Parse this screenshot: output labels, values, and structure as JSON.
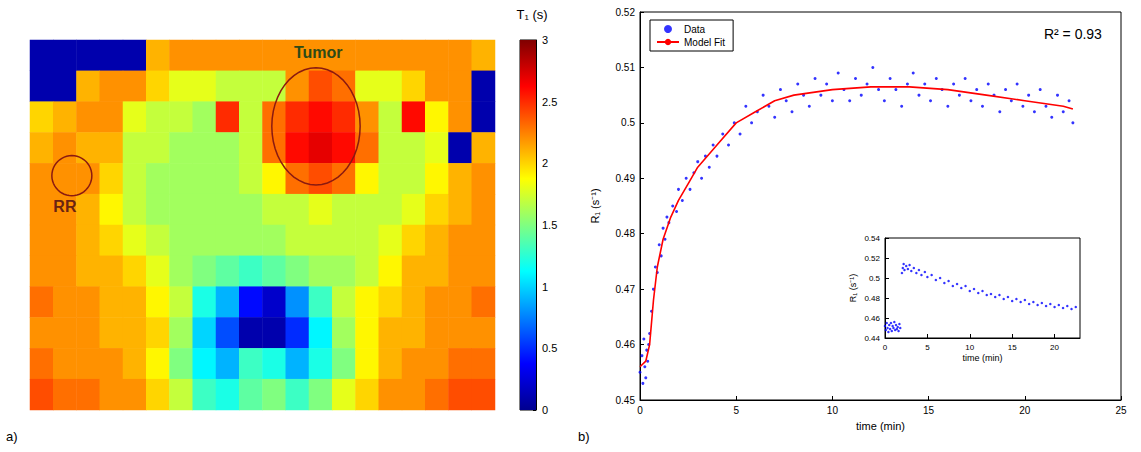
{
  "chart_data": [
    {
      "type": "heatmap",
      "panel": "a)",
      "tick_labels": false,
      "cells": [
        [
          0.1,
          0.1,
          0.1,
          0.1,
          0.1,
          2.1,
          2.2,
          2.2,
          2.2,
          2.2,
          2.2,
          2.2,
          2.2,
          2.2,
          2.2,
          2.2,
          2.2,
          2.2,
          2.2,
          2.1
        ],
        [
          0.1,
          0.1,
          2.1,
          2.2,
          2.2,
          2.0,
          1.8,
          1.8,
          1.7,
          1.7,
          1.7,
          2.2,
          2.4,
          2.3,
          1.8,
          1.8,
          2.0,
          2.2,
          2.2,
          0.1
        ],
        [
          2.0,
          2.1,
          2.2,
          2.2,
          1.8,
          1.7,
          1.7,
          1.6,
          2.5,
          1.7,
          2.3,
          2.5,
          2.6,
          2.5,
          2.2,
          1.7,
          2.6,
          1.9,
          2.2,
          0.1
        ],
        [
          2.1,
          2.2,
          2.1,
          2.1,
          1.7,
          1.7,
          1.6,
          1.6,
          1.6,
          1.7,
          2.3,
          2.6,
          2.7,
          2.6,
          2.3,
          1.7,
          1.7,
          1.8,
          0.1,
          2.1
        ],
        [
          2.2,
          2.2,
          2.2,
          2.0,
          1.7,
          1.6,
          1.6,
          1.6,
          1.6,
          1.7,
          1.9,
          2.3,
          2.4,
          2.3,
          1.9,
          1.7,
          1.7,
          1.9,
          2.1,
          2.2
        ],
        [
          2.2,
          2.2,
          2.1,
          1.9,
          1.7,
          1.6,
          1.6,
          1.6,
          1.6,
          1.6,
          1.7,
          1.7,
          1.8,
          1.7,
          1.7,
          1.7,
          1.8,
          2.0,
          2.1,
          2.2
        ],
        [
          2.2,
          2.2,
          2.1,
          2.0,
          1.8,
          1.7,
          1.6,
          1.6,
          1.6,
          1.6,
          1.6,
          1.7,
          1.7,
          1.7,
          1.7,
          1.8,
          2.0,
          2.1,
          2.2,
          2.2
        ],
        [
          2.2,
          2.2,
          2.1,
          2.1,
          2.0,
          1.8,
          1.6,
          1.5,
          1.4,
          1.3,
          1.4,
          1.5,
          1.6,
          1.6,
          1.7,
          1.9,
          2.1,
          2.1,
          2.2,
          2.2
        ],
        [
          2.3,
          2.2,
          2.2,
          2.1,
          2.1,
          1.9,
          1.7,
          1.2,
          0.9,
          0.4,
          0.2,
          0.8,
          1.3,
          1.7,
          1.9,
          2.0,
          2.1,
          2.2,
          2.2,
          2.3
        ],
        [
          2.2,
          2.2,
          2.2,
          2.1,
          2.1,
          2.0,
          1.6,
          1.0,
          0.6,
          0.1,
          0.1,
          0.5,
          1.1,
          1.6,
          1.9,
          2.1,
          2.1,
          2.2,
          2.2,
          2.2
        ],
        [
          2.3,
          2.2,
          2.2,
          2.2,
          2.1,
          1.9,
          1.5,
          1.1,
          0.9,
          1.3,
          1.2,
          0.9,
          1.2,
          1.5,
          1.9,
          2.1,
          2.2,
          2.2,
          2.3,
          2.3
        ],
        [
          2.4,
          2.3,
          2.3,
          2.2,
          2.2,
          2.0,
          1.7,
          1.3,
          1.2,
          1.4,
          1.5,
          1.3,
          1.5,
          1.8,
          2.0,
          2.2,
          2.2,
          2.3,
          2.4,
          2.4
        ]
      ],
      "colorbar": {
        "title": "T₁ (s)",
        "range": [
          0,
          3
        ],
        "ticks": [
          0,
          0.5,
          1,
          1.5,
          2,
          2.5,
          3
        ]
      },
      "annotations": [
        {
          "text": "Tumor",
          "x": 11.9,
          "y": -0.1,
          "roi": {
            "x": 11.8,
            "y": 2.3,
            "rx": 1.9,
            "ry": 1.9
          }
        },
        {
          "text": "RR",
          "x": 1.0,
          "y": 4.9,
          "roi": {
            "x": 1.3,
            "y": 3.9,
            "rx": 0.86,
            "ry": 0.65
          }
        }
      ]
    },
    {
      "type": "scatter",
      "panel": "b)",
      "xlabel": "time (min)",
      "ylabel": "R₁ (s⁻¹)",
      "xlim": [
        0,
        25
      ],
      "xticks": [
        0,
        5,
        10,
        15,
        20,
        25
      ],
      "ylim": [
        0.45,
        0.52
      ],
      "yticks": [
        0.45,
        0.46,
        0.47,
        0.48,
        0.49,
        0.5,
        0.51,
        0.52
      ],
      "grid": false,
      "legend": "upper left",
      "annotations": [
        {
          "text": "R² = 0.93",
          "x": 22.5,
          "y": 0.516
        }
      ],
      "series": [
        {
          "name": "Data",
          "type": "scatter",
          "marker": "circle",
          "color": "#0000ff",
          "x": [
            0,
            0.1,
            0.15,
            0.2,
            0.25,
            0.3,
            0.35,
            0.4,
            0.45,
            0.5,
            0.6,
            0.7,
            0.8,
            0.9,
            1.0,
            1.1,
            1.2,
            1.3,
            1.4,
            1.5,
            1.7,
            1.9,
            2.0,
            2.2,
            2.4,
            2.6,
            2.8,
            3.0,
            3.2,
            3.4,
            3.6,
            3.8,
            4.0,
            4.3,
            4.6,
            4.9,
            5.2,
            5.5,
            5.8,
            6.1,
            6.4,
            6.7,
            7.0,
            7.3,
            7.6,
            7.9,
            8.2,
            8.5,
            8.8,
            9.1,
            9.4,
            9.7,
            10.0,
            10.3,
            10.6,
            10.9,
            11.2,
            11.5,
            11.8,
            12.1,
            12.4,
            12.7,
            13.0,
            13.3,
            13.6,
            13.9,
            14.2,
            14.5,
            14.8,
            15.1,
            15.4,
            15.7,
            16.0,
            16.3,
            16.6,
            16.9,
            17.2,
            17.5,
            17.8,
            18.1,
            18.4,
            18.7,
            19.0,
            19.3,
            19.6,
            19.9,
            20.2,
            20.5,
            20.8,
            21.1,
            21.4,
            21.7,
            22.0,
            22.3,
            22.5
          ],
          "values": [
            0.455,
            0.458,
            0.453,
            0.461,
            0.456,
            0.454,
            0.459,
            0.457,
            0.46,
            0.462,
            0.466,
            0.47,
            0.474,
            0.473,
            0.478,
            0.476,
            0.481,
            0.479,
            0.483,
            0.482,
            0.485,
            0.484,
            0.488,
            0.486,
            0.49,
            0.488,
            0.491,
            0.493,
            0.49,
            0.494,
            0.492,
            0.496,
            0.494,
            0.498,
            0.496,
            0.5,
            0.498,
            0.503,
            0.5,
            0.502,
            0.505,
            0.503,
            0.501,
            0.506,
            0.504,
            0.502,
            0.507,
            0.505,
            0.503,
            0.508,
            0.505,
            0.507,
            0.504,
            0.509,
            0.506,
            0.504,
            0.508,
            0.505,
            0.507,
            0.51,
            0.506,
            0.504,
            0.508,
            0.506,
            0.503,
            0.507,
            0.509,
            0.505,
            0.507,
            0.504,
            0.508,
            0.506,
            0.503,
            0.507,
            0.505,
            0.508,
            0.504,
            0.506,
            0.503,
            0.507,
            0.505,
            0.502,
            0.506,
            0.504,
            0.507,
            0.503,
            0.505,
            0.502,
            0.506,
            0.503,
            0.501,
            0.505,
            0.502,
            0.504,
            0.5
          ]
        },
        {
          "name": "Model Fit",
          "type": "line",
          "line_style": "solid",
          "color": "#ff0000",
          "x": [
            0,
            0.3,
            0.5,
            0.7,
            0.9,
            1.2,
            1.6,
            2.0,
            2.5,
            3.0,
            4.0,
            5.0,
            6.0,
            7.0,
            8.0,
            9.0,
            10.0,
            12.0,
            14.0,
            16.0,
            18.0,
            20.0,
            21.0,
            22.0,
            22.5
          ],
          "values": [
            0.456,
            0.457,
            0.46,
            0.468,
            0.474,
            0.479,
            0.483,
            0.486,
            0.489,
            0.492,
            0.496,
            0.5,
            0.502,
            0.504,
            0.505,
            0.5055,
            0.506,
            0.5065,
            0.5065,
            0.506,
            0.505,
            0.504,
            0.5035,
            0.503,
            0.5025
          ]
        }
      ]
    },
    {
      "type": "scatter",
      "xlabel": "time (min)",
      "ylabel": "R₁ (s⁻¹)",
      "xlim": [
        0,
        23
      ],
      "xticks": [
        0,
        5,
        10,
        15,
        20
      ],
      "ylim": [
        0.44,
        0.54
      ],
      "yticks": [
        0.44,
        0.46,
        0.48,
        0.5,
        0.52,
        0.54
      ],
      "grid": false,
      "series": [
        {
          "type": "scatter",
          "marker": "circle",
          "color": "#0000ff",
          "x": [
            0,
            0.1,
            0.2,
            0.3,
            0.4,
            0.5,
            0.6,
            0.7,
            0.8,
            0.9,
            1.0,
            1.1,
            1.2,
            1.3,
            1.4,
            1.5,
            1.6,
            1.7,
            1.8,
            2.0,
            2.1,
            2.2,
            2.3,
            2.5,
            2.7,
            2.9,
            3.1,
            3.4,
            3.7,
            4.0,
            4.3,
            4.7,
            5.0,
            5.5,
            6.0,
            6.5,
            7.0,
            7.5,
            8.0,
            8.5,
            9.0,
            9.5,
            10.0,
            10.5,
            11.0,
            11.5,
            12.0,
            12.5,
            13.0,
            13.5,
            14.0,
            14.5,
            15.0,
            15.5,
            16.0,
            16.5,
            17.0,
            17.5,
            18.0,
            18.5,
            19.0,
            19.5,
            20.0,
            20.5,
            21.0,
            21.5,
            22.0,
            22.5
          ],
          "values": [
            0.452,
            0.448,
            0.455,
            0.45,
            0.446,
            0.453,
            0.449,
            0.455,
            0.447,
            0.452,
            0.45,
            0.456,
            0.448,
            0.453,
            0.449,
            0.451,
            0.447,
            0.454,
            0.45,
            0.505,
            0.51,
            0.514,
            0.508,
            0.512,
            0.509,
            0.513,
            0.507,
            0.51,
            0.505,
            0.508,
            0.503,
            0.506,
            0.501,
            0.503,
            0.498,
            0.5,
            0.495,
            0.497,
            0.492,
            0.494,
            0.49,
            0.492,
            0.487,
            0.489,
            0.485,
            0.487,
            0.483,
            0.484,
            0.481,
            0.483,
            0.479,
            0.481,
            0.477,
            0.479,
            0.476,
            0.478,
            0.474,
            0.476,
            0.473,
            0.475,
            0.472,
            0.474,
            0.471,
            0.473,
            0.47,
            0.472,
            0.469,
            0.471
          ]
        }
      ]
    }
  ]
}
